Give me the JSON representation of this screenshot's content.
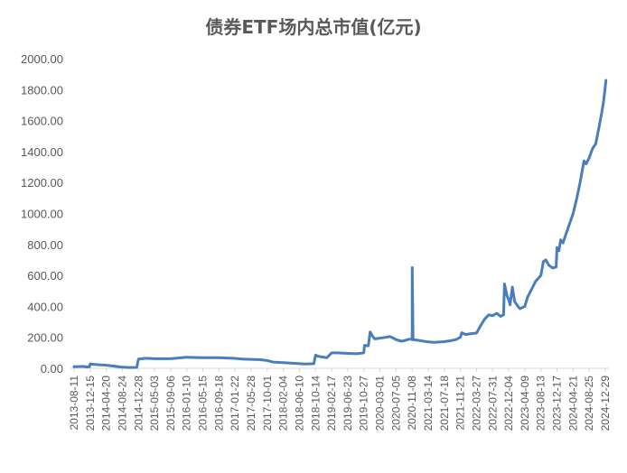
{
  "chart_data": {
    "type": "line",
    "title": "债券ETF场内总市值(亿元)",
    "xlabel": "",
    "ylabel": "",
    "ylim": [
      0,
      2000
    ],
    "y_ticks": [
      "0.00",
      "200.00",
      "400.00",
      "600.00",
      "800.00",
      "1000.00",
      "1200.00",
      "1400.00",
      "1600.00",
      "1800.00",
      "2000.00"
    ],
    "x_ticks": [
      "2013-08-11",
      "2013-12-15",
      "2014-04-20",
      "2014-08-24",
      "2014-12-28",
      "2015-05-03",
      "2015-09-06",
      "2016-01-10",
      "2016-05-15",
      "2016-09-18",
      "2017-01-22",
      "2017-05-28",
      "2017-10-01",
      "2018-02-04",
      "2018-06-10",
      "2018-10-14",
      "2019-02-17",
      "2019-06-23",
      "2019-10-27",
      "2020-03-01",
      "2020-07-05",
      "2020-11-08",
      "2021-03-14",
      "2021-07-18",
      "2021-11-21",
      "2022-03-27",
      "2022-07-31",
      "2022-12-04",
      "2023-04-09",
      "2023-08-13",
      "2023-12-17",
      "2024-04-21",
      "2024-08-25",
      "2024-12-29"
    ],
    "grid": false,
    "legend": "none",
    "series_color": "#4a7ebb",
    "series": [
      {
        "values": [
          [
            "2013-08-11",
            10
          ],
          [
            "2013-10-20",
            12
          ],
          [
            "2013-11-20",
            8
          ],
          [
            "2013-12-10",
            10
          ],
          [
            "2013-12-15",
            28
          ],
          [
            "2014-02-01",
            24
          ],
          [
            "2014-04-20",
            20
          ],
          [
            "2014-06-20",
            14
          ],
          [
            "2014-08-10",
            8
          ],
          [
            "2014-10-15",
            5
          ],
          [
            "2014-12-15",
            6
          ],
          [
            "2014-12-28",
            60
          ],
          [
            "2015-03-01",
            65
          ],
          [
            "2015-05-03",
            62
          ],
          [
            "2015-09-06",
            62
          ],
          [
            "2015-12-01",
            68
          ],
          [
            "2016-01-10",
            72
          ],
          [
            "2016-03-01",
            70
          ],
          [
            "2016-05-15",
            68
          ],
          [
            "2016-09-18",
            68
          ],
          [
            "2016-12-01",
            66
          ],
          [
            "2017-01-22",
            64
          ],
          [
            "2017-03-15",
            60
          ],
          [
            "2017-05-28",
            58
          ],
          [
            "2017-08-01",
            56
          ],
          [
            "2017-10-01",
            50
          ],
          [
            "2017-11-15",
            40
          ],
          [
            "2018-02-04",
            36
          ],
          [
            "2018-04-01",
            34
          ],
          [
            "2018-06-10",
            30
          ],
          [
            "2018-08-01",
            28
          ],
          [
            "2018-10-01",
            30
          ],
          [
            "2018-10-14",
            85
          ],
          [
            "2018-11-01",
            78
          ],
          [
            "2019-01-10",
            68
          ],
          [
            "2019-02-17",
            100
          ],
          [
            "2019-04-01",
            100
          ],
          [
            "2019-06-23",
            96
          ],
          [
            "2019-09-01",
            94
          ],
          [
            "2019-10-27",
            100
          ],
          [
            "2019-11-01",
            148
          ],
          [
            "2019-12-01",
            145
          ],
          [
            "2019-12-15",
            235
          ],
          [
            "2020-01-01",
            210
          ],
          [
            "2020-01-20",
            190
          ],
          [
            "2020-03-01",
            195
          ],
          [
            "2020-04-15",
            200
          ],
          [
            "2020-05-15",
            205
          ],
          [
            "2020-06-15",
            195
          ],
          [
            "2020-07-05",
            185
          ],
          [
            "2020-08-15",
            175
          ],
          [
            "2020-09-15",
            180
          ],
          [
            "2020-10-15",
            188
          ],
          [
            "2020-11-01",
            188
          ],
          [
            "2020-11-08",
            185
          ],
          [
            "2020-11-09",
            650
          ],
          [
            "2020-11-15",
            185
          ],
          [
            "2021-01-01",
            180
          ],
          [
            "2021-03-14",
            170
          ],
          [
            "2021-05-01",
            168
          ],
          [
            "2021-07-18",
            172
          ],
          [
            "2021-09-01",
            178
          ],
          [
            "2021-10-15",
            185
          ],
          [
            "2021-11-21",
            200
          ],
          [
            "2021-12-01",
            230
          ],
          [
            "2022-01-01",
            218
          ],
          [
            "2022-02-01",
            222
          ],
          [
            "2022-03-27",
            228
          ],
          [
            "2022-05-01",
            280
          ],
          [
            "2022-06-01",
            320
          ],
          [
            "2022-07-01",
            345
          ],
          [
            "2022-07-31",
            340
          ],
          [
            "2022-09-01",
            355
          ],
          [
            "2022-10-01",
            335
          ],
          [
            "2022-10-25",
            345
          ],
          [
            "2022-11-01",
            545
          ],
          [
            "2022-11-20",
            470
          ],
          [
            "2022-12-04",
            440
          ],
          [
            "2022-12-15",
            410
          ],
          [
            "2023-01-01",
            525
          ],
          [
            "2023-01-20",
            430
          ],
          [
            "2023-02-15",
            400
          ],
          [
            "2023-03-01",
            385
          ],
          [
            "2023-04-09",
            400
          ],
          [
            "2023-05-01",
            460
          ],
          [
            "2023-06-01",
            510
          ],
          [
            "2023-07-01",
            560
          ],
          [
            "2023-08-13",
            600
          ],
          [
            "2023-09-01",
            690
          ],
          [
            "2023-09-20",
            700
          ],
          [
            "2023-10-15",
            665
          ],
          [
            "2023-11-15",
            648
          ],
          [
            "2023-12-10",
            655
          ],
          [
            "2023-12-17",
            780
          ],
          [
            "2024-01-01",
            760
          ],
          [
            "2024-01-15",
            830
          ],
          [
            "2024-02-01",
            810
          ],
          [
            "2024-03-01",
            880
          ],
          [
            "2024-04-21",
            1000
          ],
          [
            "2024-05-20",
            1100
          ],
          [
            "2024-06-15",
            1200
          ],
          [
            "2024-07-15",
            1340
          ],
          [
            "2024-08-01",
            1320
          ],
          [
            "2024-08-25",
            1360
          ],
          [
            "2024-09-20",
            1420
          ],
          [
            "2024-10-15",
            1450
          ],
          [
            "2024-11-10",
            1560
          ],
          [
            "2024-12-01",
            1650
          ],
          [
            "2024-12-15",
            1720
          ],
          [
            "2024-12-25",
            1790
          ],
          [
            "2025-01-03",
            1860
          ]
        ]
      }
    ]
  }
}
